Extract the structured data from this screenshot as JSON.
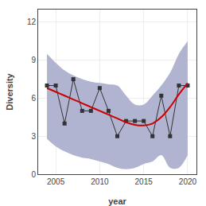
{
  "chart_data": {
    "type": "line",
    "x": [
      2004,
      2005,
      2006,
      2007,
      2008,
      2009,
      2010,
      2011,
      2012,
      2013,
      2014,
      2015,
      2016,
      2017,
      2018,
      2019,
      2020
    ],
    "series": [
      {
        "type": "band",
        "color": "#B0B4D0",
        "line_style": "spline",
        "upper": [
          9.5,
          8.8,
          8.2,
          7.8,
          7.5,
          7.3,
          7.2,
          7.1,
          7.0,
          6.2,
          5.5,
          5.5,
          6.2,
          7.0,
          8.0,
          9.5,
          10.5
        ],
        "lower": [
          2.8,
          2.2,
          1.8,
          1.5,
          1.3,
          1.2,
          1.0,
          0.8,
          0.5,
          0.4,
          0.5,
          0.8,
          1.0,
          1.5,
          0.5,
          0.5,
          1.5
        ]
      },
      {
        "type": "line",
        "color": "#333333",
        "marker": "square",
        "line_style": "solid",
        "values": [
          7.0,
          7.0,
          4.0,
          7.5,
          5.0,
          5.0,
          6.8,
          5.0,
          3.0,
          4.2,
          4.2,
          4.2,
          3.0,
          6.2,
          3.0,
          7.0,
          7.0
        ]
      },
      {
        "type": "line",
        "color": "#CC0000",
        "line_style": "spline",
        "values": [
          6.8,
          6.5,
          6.2,
          5.9,
          5.6,
          5.3,
          5.0,
          4.7,
          4.4,
          4.1,
          3.9,
          3.85,
          4.0,
          4.5,
          5.3,
          6.3,
          7.2
        ]
      }
    ],
    "xlabel": "year",
    "ylabel": "Diversity",
    "xlim": [
      2003.0,
      2021.0
    ],
    "xticks": [
      2005,
      2010,
      2015,
      2020
    ],
    "ylim": [
      0,
      13
    ],
    "yticks": [
      0,
      3,
      6,
      9,
      12
    ],
    "grid": true
  }
}
